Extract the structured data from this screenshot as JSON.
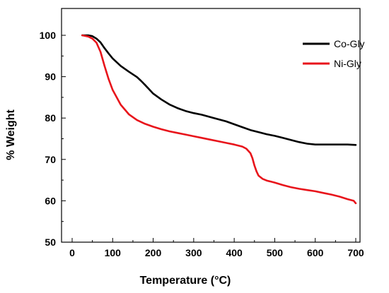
{
  "chart_data": {
    "type": "line",
    "xlabel": "Temperature (°C)",
    "ylabel": "% Weight",
    "xlim": [
      0,
      700
    ],
    "ylim": [
      50,
      100
    ],
    "xticks": [
      0,
      100,
      200,
      300,
      400,
      500,
      600,
      700
    ],
    "yticks": [
      50,
      60,
      70,
      80,
      90,
      100
    ],
    "grid": false,
    "legend_position": "top-right",
    "series": [
      {
        "name": "Co-Gly",
        "color": "#000000",
        "points": [
          [
            25,
            100
          ],
          [
            40,
            100
          ],
          [
            50,
            99.8
          ],
          [
            60,
            99.2
          ],
          [
            70,
            98.3
          ],
          [
            80,
            96.9
          ],
          [
            90,
            95.6
          ],
          [
            100,
            94.4
          ],
          [
            120,
            92.6
          ],
          [
            140,
            91.2
          ],
          [
            160,
            89.9
          ],
          [
            170,
            89.0
          ],
          [
            180,
            88.0
          ],
          [
            200,
            85.9
          ],
          [
            220,
            84.5
          ],
          [
            240,
            83.3
          ],
          [
            260,
            82.4
          ],
          [
            280,
            81.7
          ],
          [
            300,
            81.2
          ],
          [
            320,
            80.8
          ],
          [
            350,
            80.0
          ],
          [
            380,
            79.2
          ],
          [
            400,
            78.5
          ],
          [
            420,
            77.8
          ],
          [
            440,
            77.1
          ],
          [
            460,
            76.6
          ],
          [
            480,
            76.1
          ],
          [
            500,
            75.7
          ],
          [
            520,
            75.2
          ],
          [
            540,
            74.7
          ],
          [
            560,
            74.2
          ],
          [
            580,
            73.8
          ],
          [
            600,
            73.6
          ],
          [
            620,
            73.6
          ],
          [
            640,
            73.6
          ],
          [
            660,
            73.6
          ],
          [
            680,
            73.6
          ],
          [
            700,
            73.5
          ]
        ]
      },
      {
        "name": "Ni-Gly",
        "color": "#e8141b",
        "points": [
          [
            25,
            100
          ],
          [
            40,
            99.7
          ],
          [
            50,
            99.2
          ],
          [
            60,
            98.2
          ],
          [
            70,
            96.0
          ],
          [
            80,
            92.6
          ],
          [
            90,
            89.4
          ],
          [
            100,
            86.8
          ],
          [
            120,
            83.2
          ],
          [
            140,
            80.9
          ],
          [
            160,
            79.5
          ],
          [
            180,
            78.6
          ],
          [
            200,
            77.9
          ],
          [
            220,
            77.3
          ],
          [
            240,
            76.8
          ],
          [
            260,
            76.4
          ],
          [
            280,
            76.0
          ],
          [
            300,
            75.6
          ],
          [
            320,
            75.2
          ],
          [
            340,
            74.8
          ],
          [
            360,
            74.4
          ],
          [
            380,
            74.0
          ],
          [
            400,
            73.6
          ],
          [
            420,
            73.1
          ],
          [
            430,
            72.6
          ],
          [
            440,
            71.5
          ],
          [
            445,
            70.3
          ],
          [
            450,
            68.5
          ],
          [
            455,
            67.1
          ],
          [
            460,
            66.1
          ],
          [
            470,
            65.3
          ],
          [
            480,
            64.9
          ],
          [
            500,
            64.4
          ],
          [
            520,
            63.8
          ],
          [
            540,
            63.3
          ],
          [
            560,
            62.9
          ],
          [
            580,
            62.6
          ],
          [
            600,
            62.3
          ],
          [
            620,
            61.9
          ],
          [
            640,
            61.5
          ],
          [
            660,
            61.0
          ],
          [
            680,
            60.4
          ],
          [
            695,
            60.0
          ],
          [
            700,
            59.4
          ]
        ]
      }
    ]
  }
}
